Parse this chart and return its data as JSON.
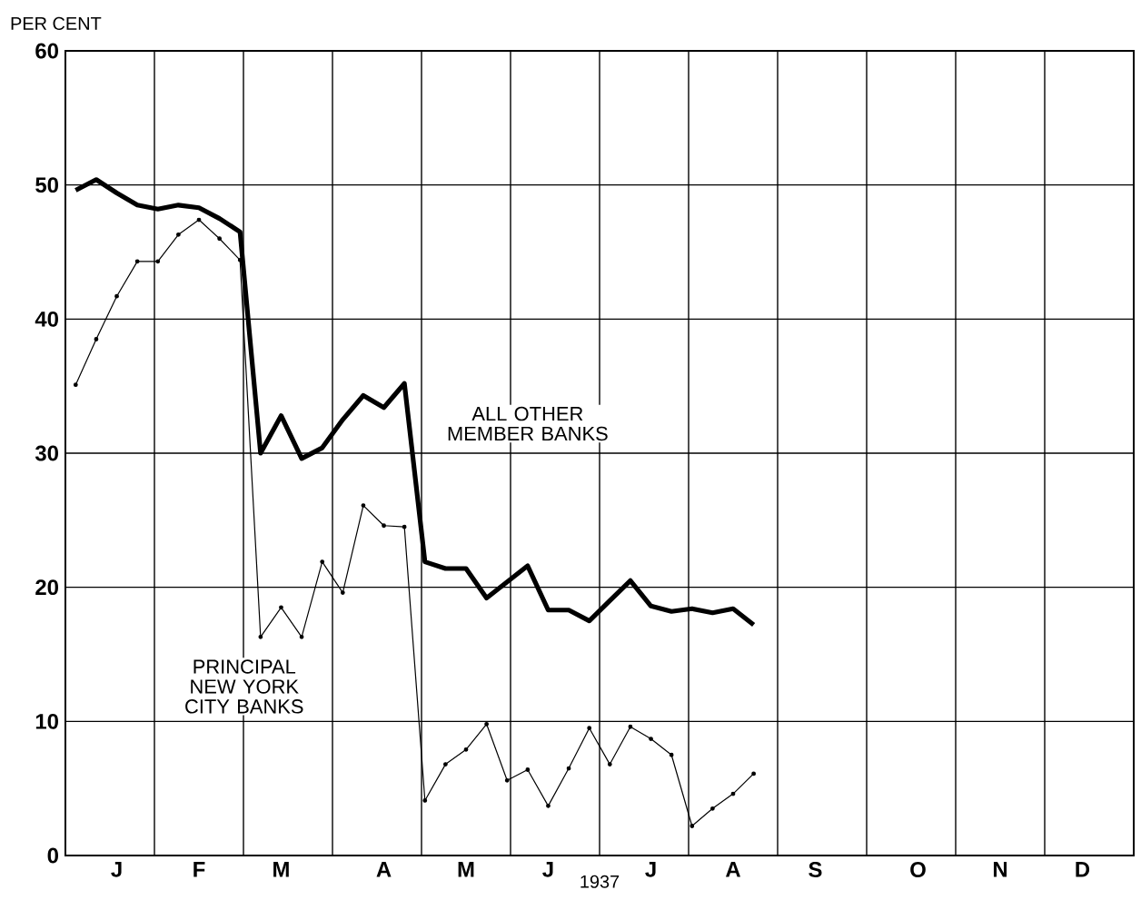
{
  "chart_data": {
    "type": "line",
    "ylabel": "PER CENT",
    "xlabel": "1937",
    "categories": [
      null,
      null,
      "J",
      null,
      null,
      null,
      "F",
      null,
      null,
      null,
      "M",
      null,
      null,
      null,
      null,
      "A",
      null,
      null,
      null,
      "M",
      null,
      null,
      null,
      "J",
      null,
      null,
      null,
      null,
      "J",
      null,
      null,
      null,
      "A",
      null,
      null,
      null,
      "S",
      null,
      null,
      null,
      null,
      "O",
      null,
      null,
      null,
      "N",
      null,
      null,
      null,
      "D",
      null,
      null
    ],
    "ylim": [
      0,
      60
    ],
    "yticks": [
      0,
      10,
      20,
      30,
      40,
      50,
      60
    ],
    "grid": true,
    "legend": false,
    "line_style": "solid",
    "series": [
      {
        "name": "ALL OTHER MEMBER BANKS",
        "color": "#000000",
        "marker": "none",
        "values": [
          49.6,
          50.4,
          49.4,
          48.5,
          48.2,
          48.5,
          48.3,
          47.5,
          46.5,
          30.0,
          32.8,
          29.6,
          30.4,
          32.5,
          34.3,
          33.4,
          35.2,
          21.9,
          21.4,
          21.4,
          19.2,
          20.4,
          21.6,
          18.3,
          18.3,
          17.5,
          19.0,
          20.5,
          18.6,
          18.2,
          18.4,
          18.1,
          18.4,
          17.2,
          null,
          null,
          null,
          null,
          null,
          null,
          null,
          null,
          null,
          null,
          null,
          null,
          null,
          null,
          null,
          null,
          null,
          null
        ]
      },
      {
        "name": "PRINCIPAL NEW YORK CITY BANKS",
        "color": "#000000",
        "marker": "circle",
        "values": [
          35.1,
          38.5,
          41.7,
          44.3,
          44.3,
          46.3,
          47.4,
          46.0,
          44.4,
          16.3,
          18.5,
          16.3,
          21.9,
          19.6,
          26.1,
          24.6,
          24.5,
          4.1,
          6.8,
          7.9,
          9.8,
          5.6,
          6.4,
          3.7,
          6.5,
          9.5,
          6.8,
          9.6,
          8.7,
          7.5,
          2.2,
          3.5,
          4.6,
          6.1,
          null,
          null,
          null,
          null,
          null,
          null,
          null,
          null,
          null,
          null,
          null,
          null,
          null,
          null,
          null,
          null,
          null,
          null
        ]
      }
    ]
  }
}
